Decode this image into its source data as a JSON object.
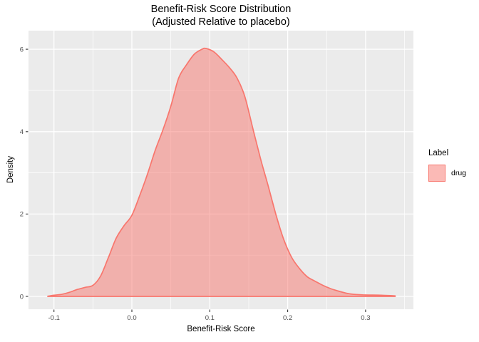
{
  "title": {
    "line1": "Benefit-Risk Score Distribution",
    "line2": "(Adjusted Relative to placebo)"
  },
  "chart_data": {
    "type": "area",
    "subtype": "density",
    "title": "Benefit-Risk Score Distribution (Adjusted Relative to placebo)",
    "xlabel": "Benefit-Risk Score",
    "ylabel": "Density",
    "xlim": [
      -0.1327,
      0.3614
    ],
    "ylim": [
      -0.311,
      6.452
    ],
    "x_ticks": [
      -0.1,
      0.0,
      0.1,
      0.2,
      0.3
    ],
    "x_tick_labels": [
      "-0.1",
      "0.0",
      "0.1",
      "0.2",
      "0.3"
    ],
    "x_minor_ticks": [
      -0.05,
      0.05,
      0.15,
      0.25,
      0.35
    ],
    "y_ticks": [
      0,
      2,
      4,
      6
    ],
    "y_tick_labels": [
      "0",
      "2",
      "4",
      "6"
    ],
    "y_minor_ticks": [
      1,
      3,
      5
    ],
    "grid": "on",
    "legend_position": "right",
    "legend": {
      "title": "Label",
      "entries": [
        {
          "label": "drug",
          "color": "#F8766D",
          "fill_opacity": 0.5
        }
      ]
    },
    "series": [
      {
        "name": "drug",
        "color": "#F8766D",
        "fill_opacity": 0.5,
        "peak": {
          "x": 0.095,
          "density": 6.02
        },
        "points": [
          [
            -0.108,
            0.005
          ],
          [
            -0.1,
            0.03
          ],
          [
            -0.09,
            0.05
          ],
          [
            -0.08,
            0.1
          ],
          [
            -0.07,
            0.17
          ],
          [
            -0.06,
            0.22
          ],
          [
            -0.05,
            0.27
          ],
          [
            -0.04,
            0.5
          ],
          [
            -0.03,
            0.95
          ],
          [
            -0.02,
            1.42
          ],
          [
            -0.01,
            1.72
          ],
          [
            0.0,
            1.97
          ],
          [
            0.01,
            2.45
          ],
          [
            0.02,
            2.97
          ],
          [
            0.03,
            3.55
          ],
          [
            0.04,
            4.05
          ],
          [
            0.05,
            4.62
          ],
          [
            0.06,
            5.3
          ],
          [
            0.07,
            5.62
          ],
          [
            0.08,
            5.88
          ],
          [
            0.09,
            6.0
          ],
          [
            0.095,
            6.02
          ],
          [
            0.105,
            5.94
          ],
          [
            0.115,
            5.76
          ],
          [
            0.125,
            5.56
          ],
          [
            0.135,
            5.3
          ],
          [
            0.145,
            4.85
          ],
          [
            0.155,
            4.1
          ],
          [
            0.165,
            3.35
          ],
          [
            0.175,
            2.68
          ],
          [
            0.185,
            1.98
          ],
          [
            0.195,
            1.38
          ],
          [
            0.205,
            0.95
          ],
          [
            0.215,
            0.68
          ],
          [
            0.225,
            0.48
          ],
          [
            0.235,
            0.37
          ],
          [
            0.245,
            0.27
          ],
          [
            0.255,
            0.19
          ],
          [
            0.265,
            0.13
          ],
          [
            0.275,
            0.08
          ],
          [
            0.285,
            0.05
          ],
          [
            0.3,
            0.035
          ],
          [
            0.32,
            0.03
          ],
          [
            0.338,
            0.015
          ]
        ]
      }
    ],
    "colors": {
      "panel_background": "#EBEBEB",
      "gridline": "#FFFFFF",
      "accent": "#F8766D",
      "tick_label": "#4D4D4D",
      "tick_mark": "#333333",
      "text": "#000000"
    }
  }
}
